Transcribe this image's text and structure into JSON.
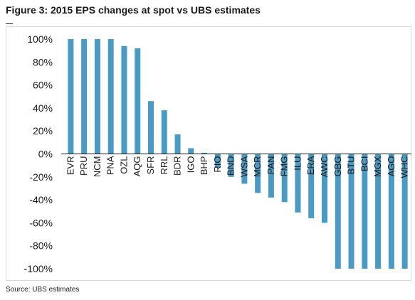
{
  "figure": {
    "title": "Figure 3: 2015 EPS changes at spot vs UBS estimates",
    "source": "Source: UBS estimates"
  },
  "chart_data": {
    "type": "bar",
    "categories": [
      "EVR",
      "PRU",
      "NCM",
      "PNA",
      "OZL",
      "AQG",
      "SFR",
      "RRL",
      "BDR",
      "IGO",
      "BHP",
      "RIO",
      "BND",
      "WSA",
      "MCR",
      "PAN",
      "FMG",
      "ILU",
      "ERA",
      "AWC",
      "GBG",
      "BTU",
      "BCI",
      "MGX",
      "AGO",
      "WHC"
    ],
    "values": [
      100,
      100,
      100,
      100,
      94,
      92,
      46,
      38,
      17,
      5,
      1,
      -12,
      -20,
      -26,
      -34,
      -38,
      -42,
      -51,
      -56,
      -60,
      -100,
      -100,
      -100,
      -100,
      -100,
      -100
    ],
    "ylim": [
      -100,
      100
    ],
    "yticks": [
      "100%",
      "80%",
      "60%",
      "40%",
      "20%",
      "0%",
      "-20%",
      "-40%",
      "-60%",
      "-80%",
      "-100%"
    ],
    "ytick_values": [
      100,
      80,
      60,
      40,
      20,
      0,
      -20,
      -40,
      -60,
      -80,
      -100
    ],
    "xlabel": "",
    "ylabel": "",
    "grid": false,
    "legend": "none",
    "bar_color": "#4a9ac4"
  }
}
